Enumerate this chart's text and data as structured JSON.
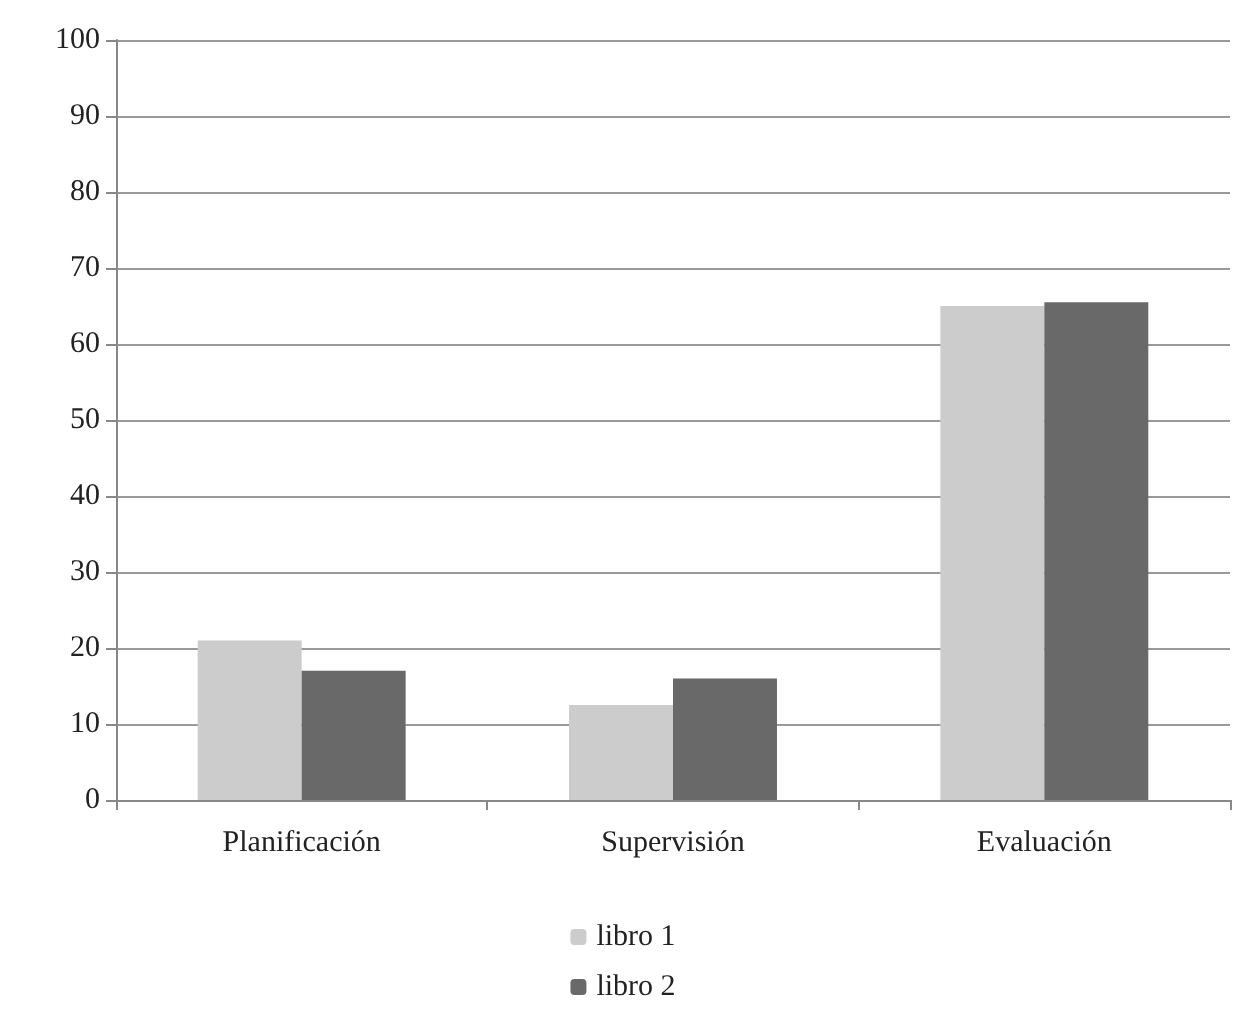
{
  "chart_data": {
    "type": "bar",
    "categories": [
      "Planificación",
      "Supervisión",
      "Evaluación"
    ],
    "series": [
      {
        "name": "libro 1",
        "color": "#cccccc",
        "values": [
          21,
          12.5,
          65
        ]
      },
      {
        "name": "libro 2",
        "color": "#696969",
        "values": [
          17,
          16,
          65.5
        ]
      }
    ],
    "ylim": [
      0,
      100
    ],
    "yticks": [
      0,
      10,
      20,
      30,
      40,
      50,
      60,
      70,
      80,
      90,
      100
    ],
    "grid": "y",
    "legend": "bottom"
  }
}
